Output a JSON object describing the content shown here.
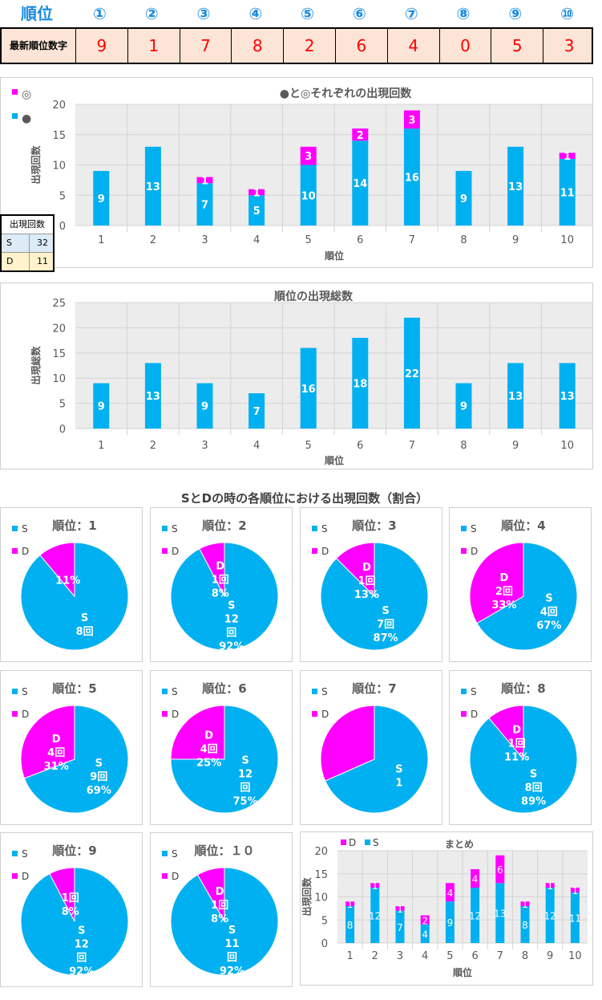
{
  "header": {
    "rank_label": "順位",
    "positions": [
      "①",
      "②",
      "③",
      "④",
      "⑤",
      "⑥",
      "⑦",
      "⑧",
      "⑨",
      "⑩"
    ],
    "latest_label": "最新順位数字",
    "latest_digits": [
      "9",
      "1",
      "7",
      "8",
      "2",
      "6",
      "4",
      "0",
      "5",
      "3"
    ]
  },
  "count_table": {
    "title": "出現回数",
    "rows": [
      {
        "label": "S",
        "value": "32"
      },
      {
        "label": "D",
        "value": "11"
      }
    ]
  },
  "colors": {
    "blue": "#00b0f0",
    "magenta": "#ff00ff",
    "header_blue": "#1a8be0",
    "cell_bg": "#fce4d6",
    "grid_bg": "#ececec"
  },
  "section_pie_title": "SとDの時の各順位における出現回数（割合）",
  "chart_data": [
    {
      "id": "stacked",
      "type": "bar",
      "title": "●と◎それぞれの出現回数",
      "xlabel": "順位",
      "ylabel": "出現回数",
      "ylim": [
        0,
        20
      ],
      "yticks": [
        0,
        5,
        10,
        15,
        20
      ],
      "categories": [
        "1",
        "2",
        "3",
        "4",
        "5",
        "6",
        "7",
        "8",
        "9",
        "10"
      ],
      "legend": [
        "◎",
        "●"
      ],
      "series": [
        {
          "name": "●",
          "color": "#00b0f0",
          "values": [
            9,
            13,
            7,
            5,
            10,
            14,
            16,
            9,
            13,
            11
          ]
        },
        {
          "name": "◎",
          "color": "#ff00ff",
          "values": [
            0,
            0,
            1,
            1,
            3,
            2,
            3,
            0,
            0,
            1
          ]
        }
      ]
    },
    {
      "id": "total",
      "type": "bar",
      "title": "順位の出現総数",
      "xlabel": "順位",
      "ylabel": "出現総数",
      "ylim": [
        0,
        25
      ],
      "yticks": [
        0,
        5,
        10,
        15,
        20,
        25
      ],
      "categories": [
        "1",
        "2",
        "3",
        "4",
        "5",
        "6",
        "7",
        "8",
        "9",
        "10"
      ],
      "series": [
        {
          "name": "総数",
          "color": "#00b0f0",
          "values": [
            9,
            13,
            9,
            7,
            16,
            18,
            22,
            9,
            13,
            13
          ]
        }
      ]
    },
    {
      "id": "pies",
      "type": "pie",
      "legend": [
        "S",
        "D"
      ],
      "charts": [
        {
          "title": "順位：1",
          "S": 8,
          "D": 1,
          "slice_labels": [
            [
              "S",
              "8回"
            ],
            [
              "11%"
            ]
          ]
        },
        {
          "title": "順位：2",
          "S": 12,
          "D": 1,
          "slice_labels": [
            [
              "S",
              "12",
              "回",
              "92%"
            ],
            [
              "D",
              "1回",
              "8%"
            ]
          ]
        },
        {
          "title": "順位：3",
          "S": 7,
          "D": 1,
          "slice_labels": [
            [
              "S",
              "7回",
              "87%"
            ],
            [
              "D",
              "1回",
              "13%"
            ]
          ]
        },
        {
          "title": "順位：4",
          "S": 4,
          "D": 2,
          "slice_labels": [
            [
              "S",
              "4回",
              "67%"
            ],
            [
              "D",
              "2回",
              "33%"
            ]
          ]
        },
        {
          "title": "順位：5",
          "S": 9,
          "D": 4,
          "slice_labels": [
            [
              "S",
              "9回",
              "69%"
            ],
            [
              "D",
              "4回",
              "31%"
            ]
          ]
        },
        {
          "title": "順位：6",
          "S": 12,
          "D": 4,
          "slice_labels": [
            [
              "S",
              "12",
              "回",
              "75%"
            ],
            [
              "D",
              "4回",
              "25%"
            ]
          ]
        },
        {
          "title": "順位：7",
          "S": 13,
          "D": 6,
          "slice_labels": [
            [
              "S",
              "1"
            ],
            []
          ]
        },
        {
          "title": "順位：8",
          "S": 8,
          "D": 1,
          "slice_labels": [
            [
              "S",
              "8回",
              "89%"
            ],
            [
              "D",
              "1回",
              "11%"
            ]
          ]
        },
        {
          "title": "順位：9",
          "S": 12,
          "D": 1,
          "slice_labels": [
            [
              "S",
              "12",
              "回",
              "92%"
            ],
            [
              "1回",
              "8%"
            ]
          ]
        },
        {
          "title": "順位：１０",
          "S": 11,
          "D": 1,
          "slice_labels": [
            [
              "S",
              "11",
              "回",
              "92%"
            ],
            [
              "D",
              "1回",
              "8%"
            ]
          ]
        }
      ]
    },
    {
      "id": "summary",
      "type": "bar",
      "title": "まとめ",
      "xlabel": "順位",
      "ylabel": "出現回数",
      "ylim": [
        0,
        20
      ],
      "yticks": [
        0,
        5,
        10,
        15,
        20
      ],
      "categories": [
        "1",
        "2",
        "3",
        "4",
        "5",
        "6",
        "7",
        "8",
        "9",
        "10"
      ],
      "legend": [
        "D",
        "S"
      ],
      "series": [
        {
          "name": "S",
          "color": "#00b0f0",
          "values": [
            8,
            12,
            7,
            4,
            9,
            12,
            13,
            8,
            12,
            11
          ]
        },
        {
          "name": "D",
          "color": "#ff00ff",
          "values": [
            1,
            1,
            1,
            2,
            4,
            4,
            6,
            1,
            1,
            1
          ]
        }
      ]
    }
  ]
}
